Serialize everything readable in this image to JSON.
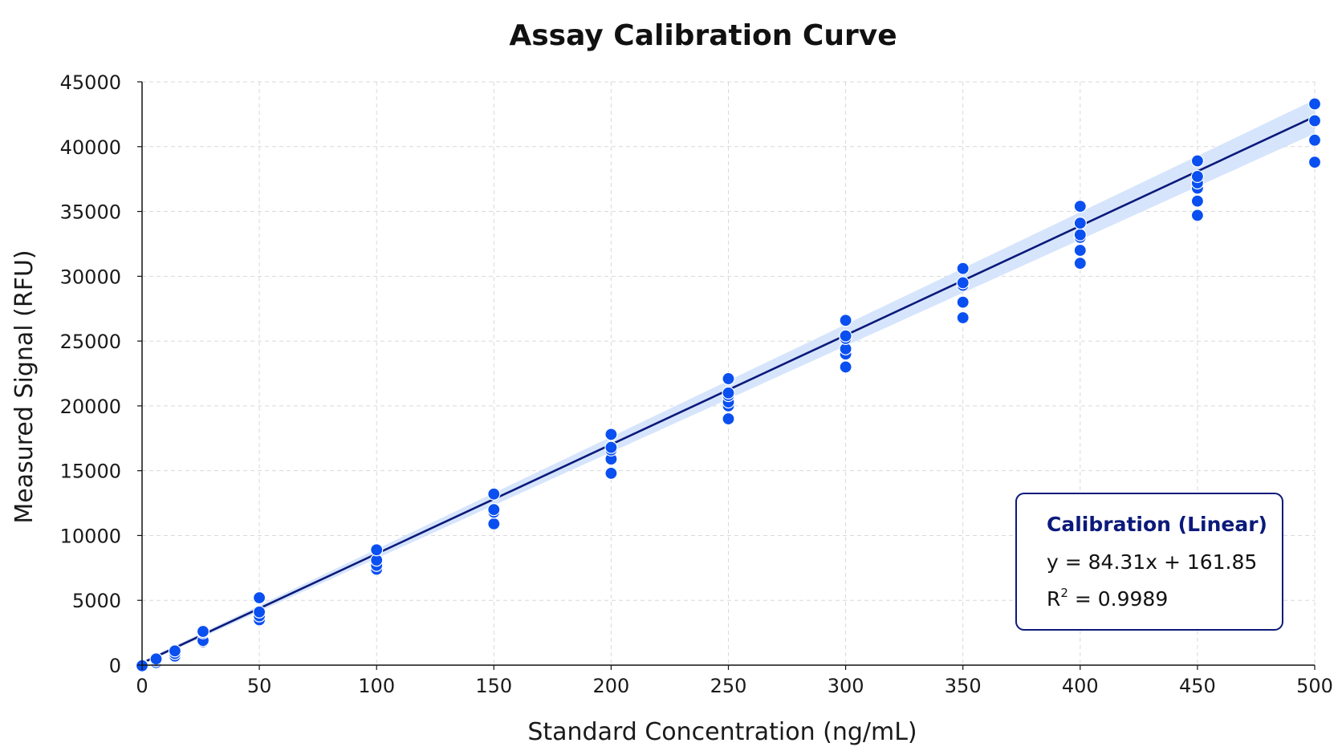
{
  "chart_data": {
    "type": "scatter",
    "title": "Assay Calibration Curve",
    "xlabel": "Standard Concentration (ng/mL)",
    "ylabel": "Measured Signal (RFU)",
    "xlim": [
      0,
      500
    ],
    "ylim": [
      0,
      45000
    ],
    "x_ticks": [
      0,
      50,
      100,
      150,
      200,
      250,
      300,
      350,
      400,
      450,
      500
    ],
    "y_ticks": [
      0,
      5000,
      10000,
      15000,
      20000,
      25000,
      30000,
      35000,
      40000,
      45000
    ],
    "grid": true,
    "legend_position": "bottom-right",
    "colors": {
      "points": "#0a4ff0",
      "fit_line": "#0b1a7a",
      "band": "#cfe1fb",
      "legend_border": "#0b1a7a"
    },
    "series": [
      {
        "type": "scatter",
        "points": [
          [
            0,
            0
          ],
          [
            0,
            -50
          ],
          [
            6,
            200
          ],
          [
            6,
            350
          ],
          [
            6,
            480
          ],
          [
            14,
            700
          ],
          [
            14,
            900
          ],
          [
            14,
            1100
          ],
          [
            26,
            1800
          ],
          [
            26,
            1900
          ],
          [
            26,
            2500
          ],
          [
            26,
            2600
          ],
          [
            50,
            3500
          ],
          [
            50,
            3800
          ],
          [
            50,
            4100
          ],
          [
            50,
            5200
          ],
          [
            100,
            7400
          ],
          [
            100,
            7700
          ],
          [
            100,
            8100
          ],
          [
            100,
            8900
          ],
          [
            150,
            10900
          ],
          [
            150,
            11800
          ],
          [
            150,
            12000
          ],
          [
            150,
            13200
          ],
          [
            200,
            14800
          ],
          [
            200,
            15900
          ],
          [
            200,
            16600
          ],
          [
            200,
            16800
          ],
          [
            200,
            17800
          ],
          [
            250,
            19000
          ],
          [
            250,
            20000
          ],
          [
            250,
            20300
          ],
          [
            250,
            20800
          ],
          [
            250,
            21000
          ],
          [
            250,
            22100
          ],
          [
            300,
            23000
          ],
          [
            300,
            24000
          ],
          [
            300,
            24400
          ],
          [
            300,
            25200
          ],
          [
            300,
            25400
          ],
          [
            300,
            26600
          ],
          [
            350,
            26800
          ],
          [
            350,
            28000
          ],
          [
            350,
            29300
          ],
          [
            350,
            29500
          ],
          [
            350,
            30600
          ],
          [
            400,
            31000
          ],
          [
            400,
            32000
          ],
          [
            400,
            33000
          ],
          [
            400,
            33200
          ],
          [
            400,
            34100
          ],
          [
            400,
            35400
          ],
          [
            450,
            34700
          ],
          [
            450,
            35800
          ],
          [
            450,
            36800
          ],
          [
            450,
            37200
          ],
          [
            450,
            37700
          ],
          [
            450,
            38900
          ],
          [
            500,
            38800
          ],
          [
            500,
            40500
          ],
          [
            500,
            42000
          ],
          [
            500,
            43300
          ]
        ]
      },
      {
        "type": "line",
        "slope": 84.31,
        "intercept": 161.85,
        "band_halfwidth_at_0": 120,
        "band_halfwidth_at_500": 1300
      }
    ],
    "legend": {
      "title": "Calibration (Linear)",
      "equation": "y = 84.31x + 161.85",
      "r2_prefix": "R",
      "r2_sup": "2",
      "r2_value": " = 0.9989"
    }
  }
}
